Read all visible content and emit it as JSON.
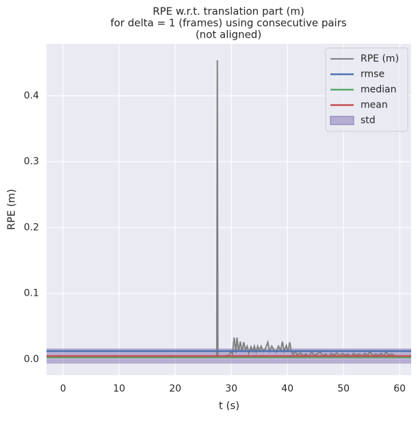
{
  "chart_data": {
    "type": "line",
    "title": [
      "RPE w.r.t. translation part (m)",
      "for delta = 1 (frames) using consecutive pairs",
      "(not aligned)"
    ],
    "xlabel": "t (s)",
    "ylabel": "RPE (m)",
    "xlim": [
      -2.95,
      62.05
    ],
    "ylim": [
      -0.024,
      0.479
    ],
    "xticks": [
      0,
      10,
      20,
      30,
      40,
      50,
      60
    ],
    "yticks": [
      {
        "value": 0,
        "label": "0.0"
      },
      0.1,
      0.2,
      0.3,
      0.4
    ],
    "grid": true,
    "legend": "upper right",
    "series": [
      {
        "name": "RPE (m)",
        "color": "#7f7f7f",
        "x": [
          27.4,
          27.5,
          27.6,
          29.6,
          29.9,
          30.2,
          30.5,
          30.8,
          31.0,
          31.3,
          31.6,
          31.9,
          32.2,
          32.5,
          32.8,
          33.1,
          33.5,
          33.8,
          34.1,
          34.4,
          34.7,
          35.0,
          35.3,
          35.7,
          36.1,
          36.5,
          36.8,
          37.2,
          37.6,
          38.0,
          38.4,
          38.8,
          39.1,
          39.4,
          39.8,
          40.1,
          40.4,
          40.7,
          41.0,
          41.4,
          41.8,
          42.3,
          42.8,
          43.3,
          43.8,
          44.3,
          44.8,
          45.3,
          45.8,
          46.3,
          46.8,
          47.3,
          47.8,
          48.3,
          48.8,
          49.3,
          49.8,
          50.3,
          50.8,
          51.3,
          51.8,
          52.3,
          52.8,
          53.3,
          53.8,
          54.3,
          54.7,
          55.2,
          55.7,
          56.2,
          56.7,
          57.2,
          57.6,
          58.0,
          58.5,
          59.0
        ],
        "values": [
          0.005,
          0.454,
          0.004,
          0.006,
          0.012,
          0.008,
          0.033,
          0.01,
          0.033,
          0.012,
          0.027,
          0.011,
          0.026,
          0.014,
          0.02,
          0.009,
          0.019,
          0.012,
          0.02,
          0.011,
          0.02,
          0.013,
          0.02,
          0.012,
          0.017,
          0.026,
          0.012,
          0.02,
          0.014,
          0.011,
          0.02,
          0.013,
          0.027,
          0.012,
          0.021,
          0.011,
          0.026,
          0.012,
          0.007,
          0.012,
          0.006,
          0.01,
          0.005,
          0.008,
          0.004,
          0.011,
          0.006,
          0.008,
          0.012,
          0.005,
          0.008,
          0.004,
          0.009,
          0.006,
          0.01,
          0.005,
          0.009,
          0.006,
          0.008,
          0.004,
          0.009,
          0.006,
          0.008,
          0.005,
          0.009,
          0.006,
          0.012,
          0.005,
          0.008,
          0.006,
          0.009,
          0.005,
          0.012,
          0.006,
          0.008,
          0.007
        ]
      }
    ],
    "stats": [
      {
        "name": "rmse",
        "color": "#4c72b0",
        "value": 0.0125
      },
      {
        "name": "median",
        "color": "#55a868",
        "value": 0.003
      },
      {
        "name": "mean",
        "color": "#c44e52",
        "value": 0.005
      }
    ],
    "std": {
      "name": "std",
      "color": "#8172b2",
      "value": 0.0115
    }
  }
}
